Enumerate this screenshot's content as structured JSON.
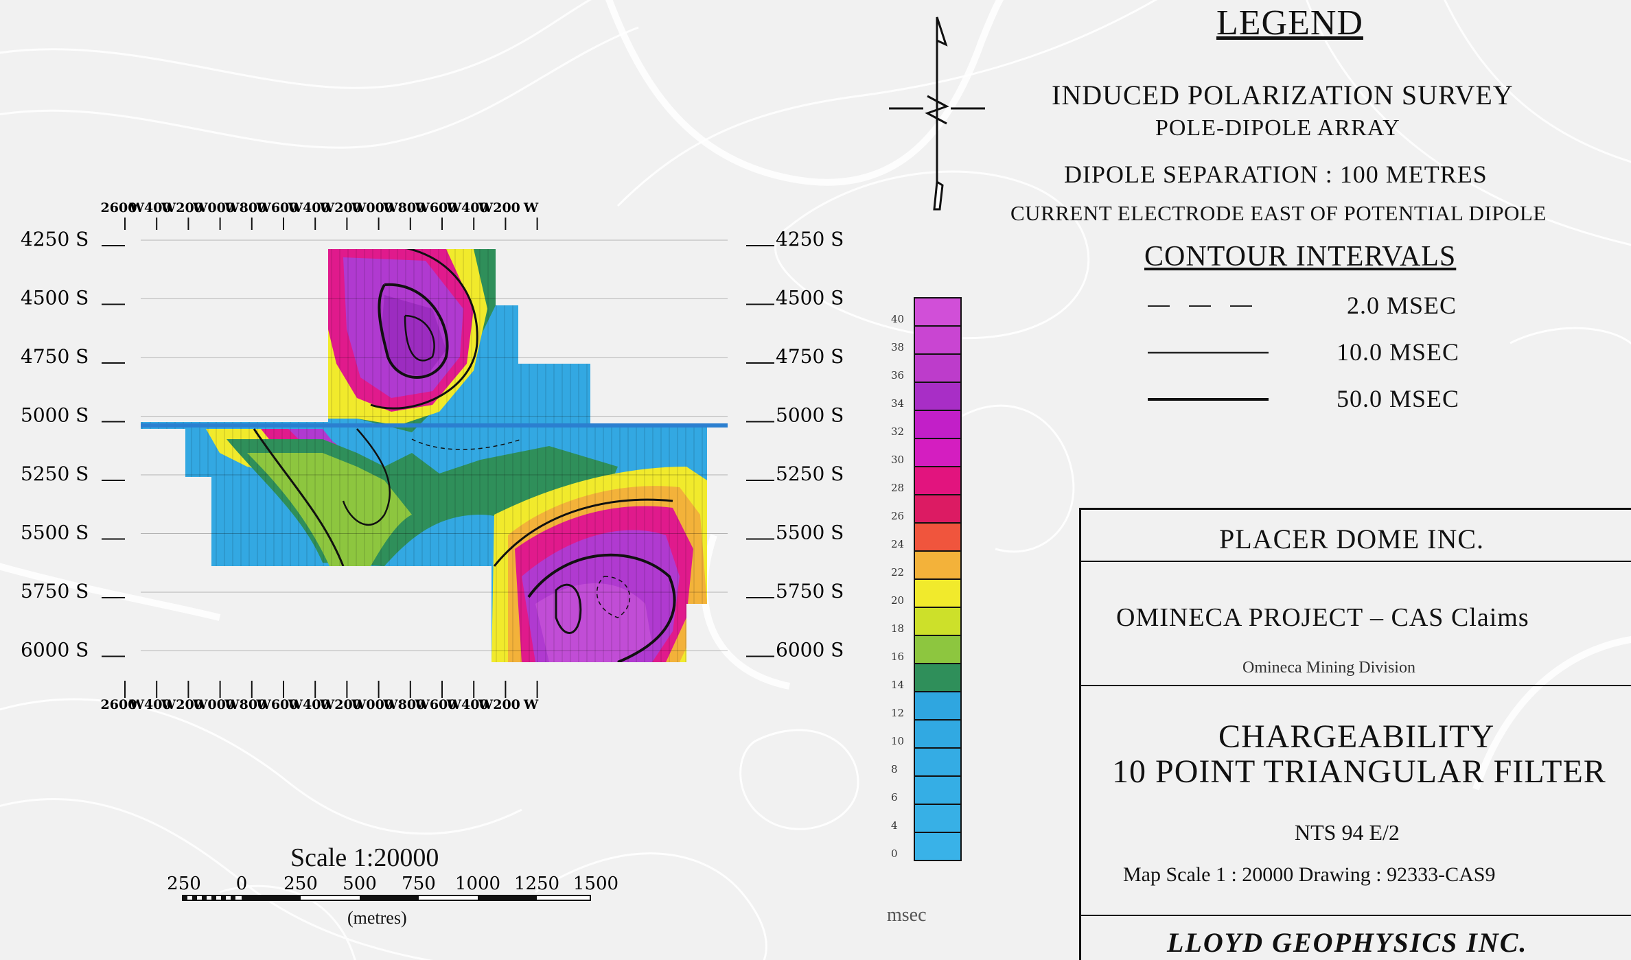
{
  "legend": {
    "title": "LEGEND",
    "survey": "INDUCED POLARIZATION SURVEY",
    "array": "POLE-DIPOLE ARRAY",
    "dipole_separation": "DIPOLE SEPARATION : 100 METRES",
    "current_electrode": "CURRENT ELECTRODE EAST OF POTENTIAL DIPOLE",
    "contour_title": "CONTOUR INTERVALS",
    "contours": [
      {
        "style": "dashed",
        "label": "2.0 MSEC"
      },
      {
        "style": "thin",
        "label": "10.0 MSEC"
      },
      {
        "style": "thick",
        "label": "50.0 MSEC"
      }
    ]
  },
  "title_block": {
    "company": "PLACER DOME INC.",
    "project": "OMINECA PROJECT  –  CAS Claims",
    "division": "Omineca Mining Division",
    "title_line1": "CHARGEABILITY",
    "title_line2": "10 POINT TRIANGULAR FILTER",
    "nts": "NTS 94 E/2",
    "map_scale": "Map Scale   1 : 20000   Drawing   : 92333-CAS9",
    "consultant": "LLOYD GEOPHYSICS INC."
  },
  "section": {
    "top_axis_labels": [
      "2600",
      "W400",
      "W200",
      "W000",
      "W800",
      "W600",
      "W400",
      "W200",
      "W000",
      "W800",
      "W600",
      "W400",
      "W200",
      "W"
    ],
    "bottom_axis_labels": [
      "2600",
      "W400",
      "W200",
      "W000",
      "W800",
      "W600",
      "W400",
      "W200",
      "W000",
      "W800",
      "W600",
      "W400",
      "W200",
      "W"
    ],
    "left_depth_labels": [
      "4250 S",
      "4500 S",
      "4750 S",
      "5000 S",
      "5250 S",
      "5500 S",
      "5750 S",
      "6000 S"
    ],
    "right_depth_labels": [
      "4250 S",
      "4500 S",
      "4750 S",
      "5000 S",
      "5250 S",
      "5500 S",
      "5750 S",
      "6000 S"
    ]
  },
  "colorbar": {
    "unit": "msec",
    "tick_labels": [
      "40",
      "38",
      "36",
      "34",
      "32",
      "30",
      "28",
      "26",
      "24",
      "22",
      "20",
      "18",
      "16",
      "14",
      "12",
      "10",
      "8",
      "6",
      "4",
      "0"
    ],
    "bands": [
      {
        "from": 40,
        "color": "#d14fd8"
      },
      {
        "from": 38,
        "color": "#c945d2"
      },
      {
        "from": 36,
        "color": "#bd3ccb"
      },
      {
        "from": 34,
        "color": "#a82ec6"
      },
      {
        "from": 32,
        "color": "#c21fc8"
      },
      {
        "from": 30,
        "color": "#d41ec0"
      },
      {
        "from": 28,
        "color": "#e2147e"
      },
      {
        "from": 26,
        "color": "#dc1b63"
      },
      {
        "from": 24,
        "color": "#f0553d"
      },
      {
        "from": 22,
        "color": "#f3b23a"
      },
      {
        "from": 20,
        "color": "#f1ea2c"
      },
      {
        "from": 18,
        "color": "#cde02a"
      },
      {
        "from": 16,
        "color": "#8dc63f"
      },
      {
        "from": 14,
        "color": "#2f8f5a"
      },
      {
        "from": 12,
        "color": "#2fa6e0"
      },
      {
        "from": 10,
        "color": "#31a9e2"
      },
      {
        "from": 8,
        "color": "#34ace4"
      },
      {
        "from": 6,
        "color": "#35aee5"
      },
      {
        "from": 4,
        "color": "#37b0e6"
      },
      {
        "from": 0,
        "color": "#39b2e8"
      }
    ]
  },
  "scale_bar": {
    "title": "Scale  1:20000",
    "tick_labels": [
      "250",
      "0",
      "250",
      "500",
      "750",
      "1000",
      "1250",
      "1500"
    ],
    "unit": "(metres)"
  },
  "colors": {
    "background": "#f1f1f1",
    "purple": "#b03ad0",
    "magenta": "#e01a8c",
    "yellow": "#f1ea2c",
    "green": "#2f8f5a",
    "blue": "#33a8e2"
  }
}
